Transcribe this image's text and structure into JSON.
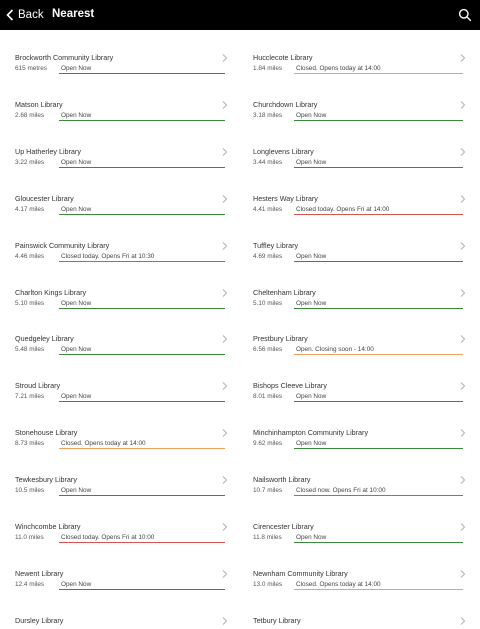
{
  "header": {
    "back_label": "Back",
    "title": "Nearest"
  },
  "colors": {
    "open": "#3a8a3a",
    "closed": "#d9534f",
    "soon": "#f0a05a"
  },
  "libraries": [
    {
      "name": "Brockworth Community Library",
      "distance": "615 metres",
      "status": "Open Now",
      "state": "open"
    },
    {
      "name": "Hucclecote Library",
      "distance": "1.84 miles",
      "status": "Closed. Opens today at 14:00",
      "state": "soon"
    },
    {
      "name": "Matson Library",
      "distance": "2.68 miles",
      "status": "Open Now",
      "state": "open"
    },
    {
      "name": "Churchdown Library",
      "distance": "3.18 miles",
      "status": "Open Now",
      "state": "open"
    },
    {
      "name": "Up Hatherley Library",
      "distance": "3.22 miles",
      "status": "Open Now",
      "state": "open"
    },
    {
      "name": "Longlevens Library",
      "distance": "3.44 miles",
      "status": "Open Now",
      "state": "open"
    },
    {
      "name": "Gloucester Library",
      "distance": "4.17 miles",
      "status": "Open Now",
      "state": "open"
    },
    {
      "name": "Hesters Way Library",
      "distance": "4.41 miles",
      "status": "Closed today. Opens Fri at 14:00",
      "state": "closed"
    },
    {
      "name": "Painswick Community Library",
      "distance": "4.46 miles",
      "status": "Closed today. Opens Fri at 10:30",
      "state": "closed"
    },
    {
      "name": "Tuffley Library",
      "distance": "4.69 miles",
      "status": "Open Now",
      "state": "open"
    },
    {
      "name": "Charlton Kings Library",
      "distance": "5.10 miles",
      "status": "Open Now",
      "state": "open"
    },
    {
      "name": "Cheltenham Library",
      "distance": "5.10 miles",
      "status": "Open Now",
      "state": "open"
    },
    {
      "name": "Quedgeley Library",
      "distance": "5.48 miles",
      "status": "Open Now",
      "state": "open"
    },
    {
      "name": "Prestbury Library",
      "distance": "6.56 miles",
      "status": "Open. Closing soon - 14:00",
      "state": "soon"
    },
    {
      "name": "Stroud Library",
      "distance": "7.21 miles",
      "status": "Open Now",
      "state": "open"
    },
    {
      "name": "Bishops Cleeve Library",
      "distance": "8.01 miles",
      "status": "Open Now",
      "state": "open"
    },
    {
      "name": "Stonehouse Library",
      "distance": "8.73 miles",
      "status": "Closed. Opens today at 14:00",
      "state": "soon"
    },
    {
      "name": "Minchinhampton Community Library",
      "distance": "9.62 miles",
      "status": "Open Now",
      "state": "open"
    },
    {
      "name": "Tewkesbury Library",
      "distance": "10.5 miles",
      "status": "Open Now",
      "state": "open"
    },
    {
      "name": "Nailsworth Library",
      "distance": "10.7 miles",
      "status": "Closed now. Opens Fri at 10:00",
      "state": "closed"
    },
    {
      "name": "Winchcombe Library",
      "distance": "11.0 miles",
      "status": "Closed today. Opens Fri at 10:00",
      "state": "closed"
    },
    {
      "name": "Cirencester Library",
      "distance": "11.8 miles",
      "status": "Open Now",
      "state": "open"
    },
    {
      "name": "Newent Library",
      "distance": "12.4 miles",
      "status": "Open Now",
      "state": "open"
    },
    {
      "name": "Newnham Community Library",
      "distance": "13.0 miles",
      "status": "Closed. Opens today at 14:00",
      "state": "soon"
    },
    {
      "name": "Dursley Library",
      "distance": "",
      "status": "",
      "state": ""
    },
    {
      "name": "Tetbury Library",
      "distance": "",
      "status": "",
      "state": ""
    }
  ]
}
